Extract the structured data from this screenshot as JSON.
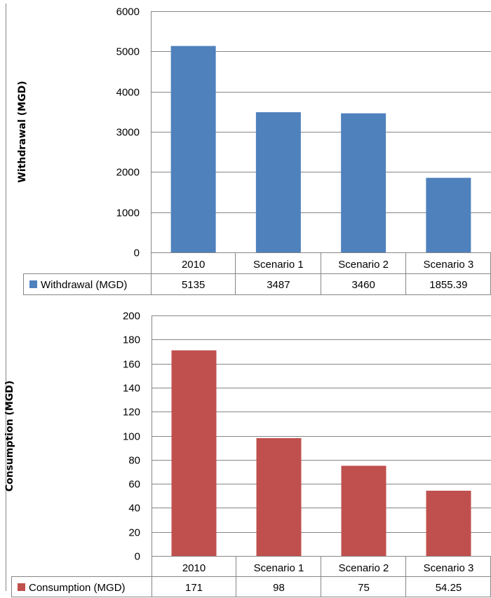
{
  "colors": {
    "withdrawal": "#4f81bd",
    "consumption": "#c0504d",
    "grid": "#868686",
    "table_border": "#868686"
  },
  "chart_data": [
    {
      "type": "bar",
      "categories": [
        "2010",
        "Scenario 1",
        "Scenario 2",
        "Scenario 3"
      ],
      "series": [
        {
          "name": "Withdrawal (MGD)",
          "values": [
            5135,
            3487,
            3460,
            1855.39
          ],
          "value_labels": [
            "5135",
            "3487",
            "3460",
            "1855.39"
          ],
          "color": "#4f81bd"
        }
      ],
      "ylabel": "Withdrawal (MGD)",
      "ylim": [
        0,
        6000
      ],
      "yticks": [
        0,
        1000,
        2000,
        3000,
        4000,
        5000,
        6000
      ],
      "grid": true,
      "legend": "data-table"
    },
    {
      "type": "bar",
      "categories": [
        "2010",
        "Scenario 1",
        "Scenario 2",
        "Scenario 3"
      ],
      "series": [
        {
          "name": "Consumption (MGD)",
          "values": [
            171,
            98,
            75,
            54.25
          ],
          "value_labels": [
            "171",
            "98",
            "75",
            "54.25"
          ],
          "color": "#c0504d"
        }
      ],
      "ylabel": "Consumption (MGD)",
      "ylim": [
        0,
        200
      ],
      "yticks": [
        0,
        20,
        40,
        60,
        80,
        100,
        120,
        140,
        160,
        180,
        200
      ],
      "grid": true,
      "legend": "data-table"
    }
  ]
}
